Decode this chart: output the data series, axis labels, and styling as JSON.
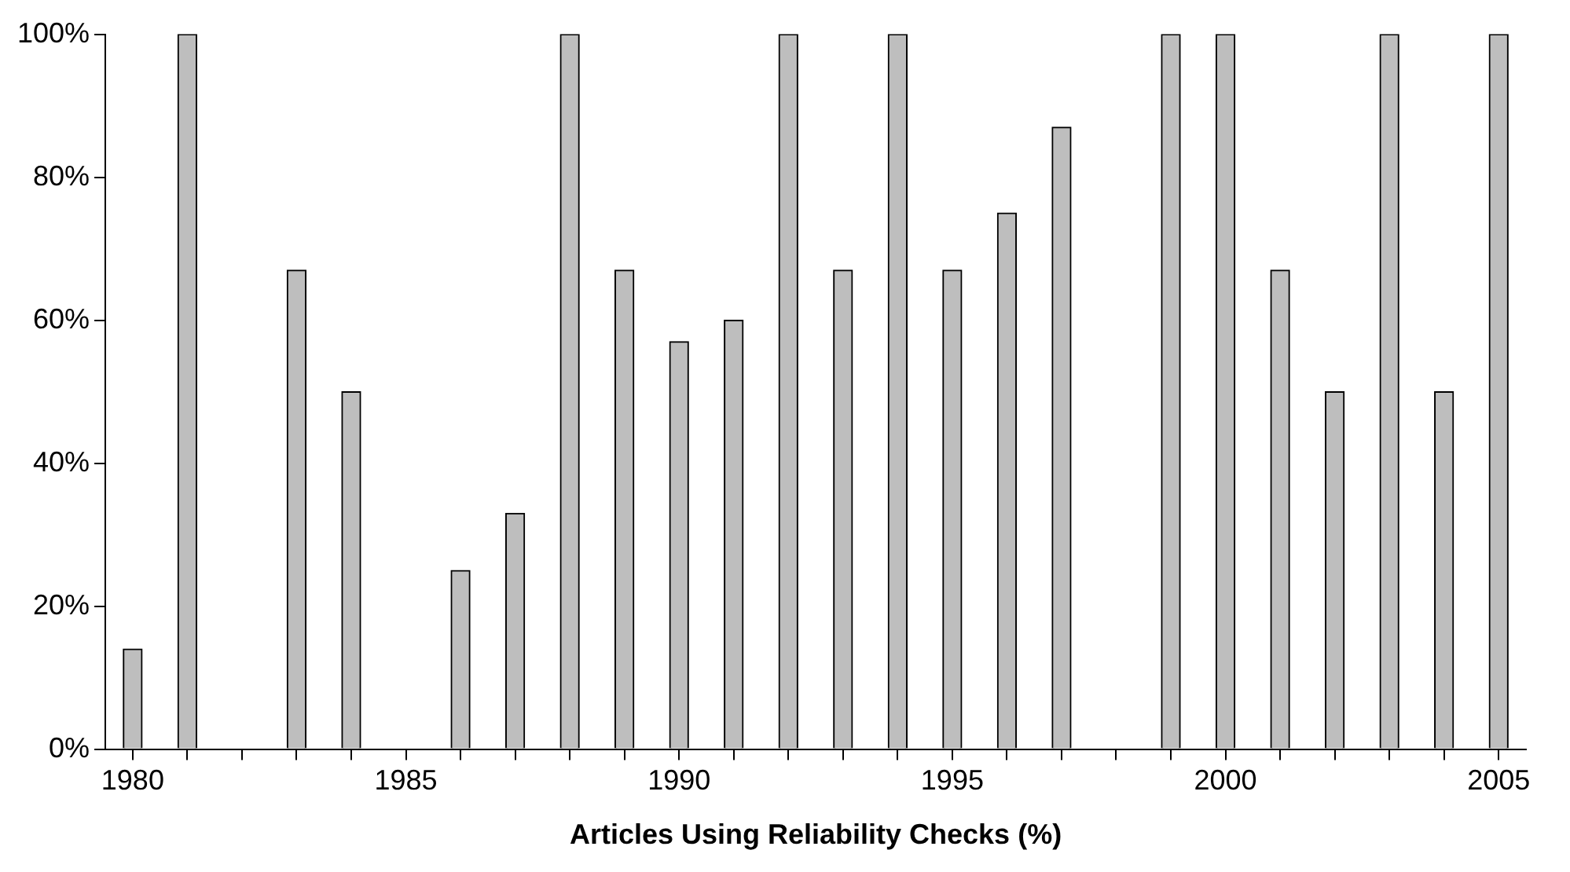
{
  "chart_data": {
    "type": "bar",
    "xlabel": "Articles Using Reliability Checks (%)",
    "categories": [
      "1980",
      null,
      null,
      null,
      null,
      "1985",
      null,
      null,
      null,
      null,
      "1990",
      null,
      null,
      null,
      null,
      "1995",
      null,
      null,
      null,
      null,
      "2000",
      null,
      null,
      null,
      null,
      "2005"
    ],
    "series": [
      {
        "color": "#bebebe",
        "values": [
          14,
          100,
          null,
          67,
          50,
          null,
          25,
          33,
          100,
          67,
          57,
          60,
          100,
          67,
          100,
          67,
          75,
          87,
          null,
          100,
          100,
          67,
          50,
          100,
          50,
          100
        ]
      }
    ],
    "ylim": [
      0,
      100
    ],
    "yticks": [
      {
        "value": 0,
        "label": "0%"
      },
      {
        "value": 20,
        "label": "20%"
      },
      {
        "value": 40,
        "label": "40%"
      },
      {
        "value": 60,
        "label": "60%"
      },
      {
        "value": 80,
        "label": "80%"
      },
      {
        "value": 100,
        "label": "100%"
      }
    ],
    "grid": false,
    "legend": false
  }
}
